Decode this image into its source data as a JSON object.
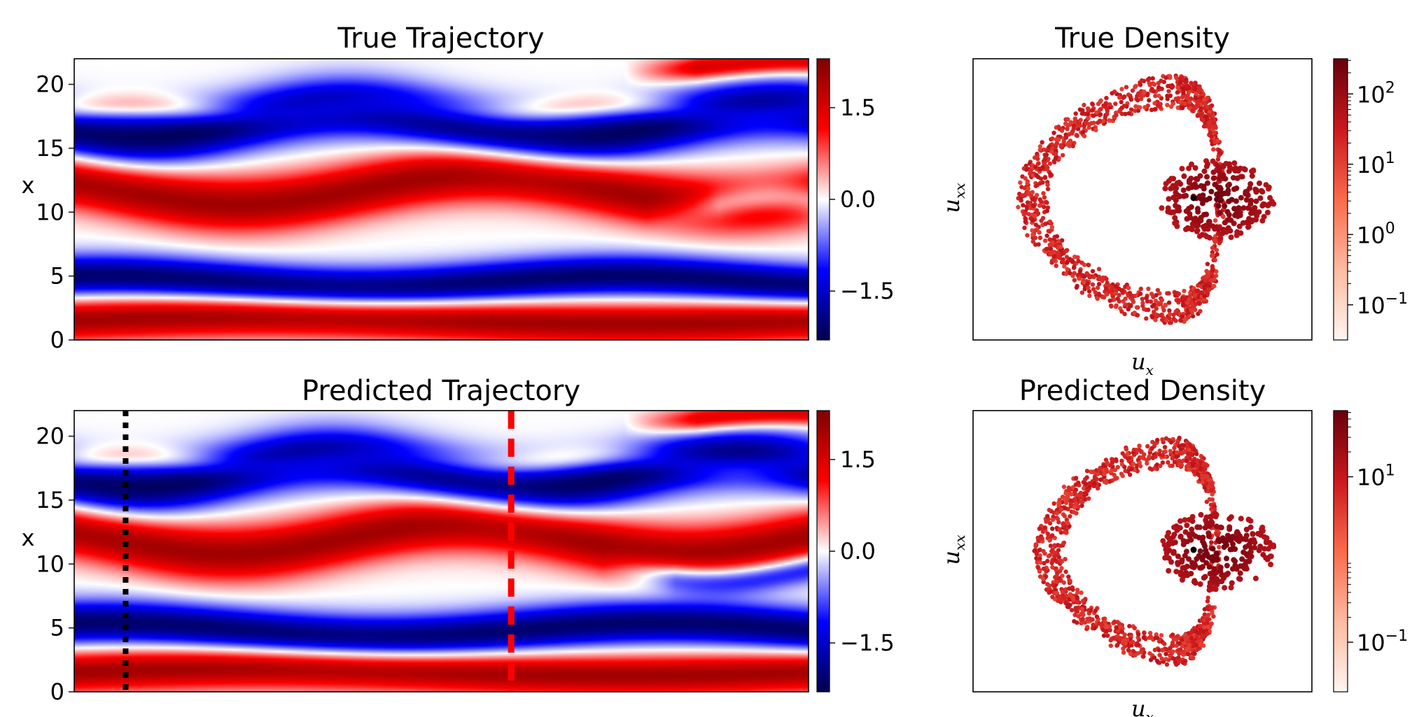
{
  "chart_data": [
    {
      "panel": "true-trajectory",
      "type": "heatmap",
      "title": "True Trajectory",
      "ylabel": "x",
      "xlabel": "",
      "ylim": [
        0,
        22
      ],
      "yticks": [
        "0",
        "5",
        "10",
        "15",
        "20"
      ],
      "colormap": "seismic",
      "colorbar": {
        "range": [
          -2.3,
          2.3
        ],
        "ticks": [
          "−1.5",
          "0.0",
          "1.5"
        ]
      },
      "bands": [
        {
          "y": 1.5,
          "v": 2.0,
          "w": 1.6,
          "amp": 0.3,
          "freq": 1.0
        },
        {
          "y": 4.5,
          "v": -2.1,
          "w": 1.6,
          "amp": 0.5,
          "freq": 1.4
        },
        {
          "y": 11.8,
          "v": 2.0,
          "w": 2.2,
          "amp": 1.2,
          "freq": 1.5
        },
        {
          "y": 17.0,
          "v": -2.2,
          "w": 2.2,
          "amp": 1.2,
          "freq": 1.7
        },
        {
          "y": 10.5,
          "v": -1.5,
          "w": 1.2,
          "amp": 0.6,
          "freq": 2.5,
          "tmin": 0.78
        },
        {
          "y": 18.0,
          "v": 0.8,
          "w": 1.0,
          "amp": 0.3,
          "freq": 3.0
        },
        {
          "y": 21.5,
          "v": 1.6,
          "w": 1.0,
          "amp": 0.4,
          "freq": 2.0,
          "tmin": 0.75
        }
      ]
    },
    {
      "panel": "predicted-trajectory",
      "type": "heatmap",
      "title": "Predicted Trajectory",
      "ylabel": "x",
      "xlabel": "",
      "ylim": [
        0,
        22
      ],
      "yticks": [
        "0",
        "5",
        "10",
        "15",
        "20"
      ],
      "colormap": "seismic",
      "colorbar": {
        "range": [
          -2.3,
          2.3
        ],
        "ticks": [
          "−1.5",
          "0.0",
          "1.5"
        ]
      },
      "bands": [
        {
          "y": 1.5,
          "v": 2.0,
          "w": 1.6,
          "amp": 0.3,
          "freq": 1.0
        },
        {
          "y": 4.8,
          "v": -2.1,
          "w": 1.7,
          "amp": 0.6,
          "freq": 1.3
        },
        {
          "y": 12.0,
          "v": 2.0,
          "w": 2.2,
          "amp": 1.2,
          "freq": 1.6
        },
        {
          "y": 17.2,
          "v": -2.2,
          "w": 2.2,
          "amp": 1.2,
          "freq": 1.8
        },
        {
          "y": 9.5,
          "v": -1.5,
          "w": 1.2,
          "amp": 0.8,
          "freq": 2.2,
          "tmin": 0.72
        },
        {
          "y": 18.0,
          "v": 0.8,
          "w": 1.0,
          "amp": 0.3,
          "freq": 3.0
        },
        {
          "y": 21.5,
          "v": 1.6,
          "w": 1.0,
          "amp": 0.4,
          "freq": 2.0,
          "tmin": 0.75
        }
      ],
      "markers": [
        {
          "name": "black-dotted-line",
          "t": 0.07,
          "color": "#000000",
          "style": "dotted"
        },
        {
          "name": "red-dashed-line",
          "t": 0.595,
          "color": "#ff0000",
          "style": "dashed"
        }
      ]
    },
    {
      "panel": "true-density",
      "type": "scatter",
      "title": "True Density",
      "xlabel_base": "u",
      "xlabel_sub": "x",
      "ylabel_base": "u",
      "ylabel_sub": "xx",
      "colormap": "Reds",
      "colorbar": {
        "scale": "log",
        "range": [
          -1.5,
          2.5
        ],
        "ticks": [
          {
            "base": "10",
            "exp": "2",
            "logv": 2
          },
          {
            "base": "10",
            "exp": "1",
            "logv": 1
          },
          {
            "base": "10",
            "exp": "0",
            "logv": 0
          },
          {
            "base": "10",
            "exp": "−1",
            "logv": -1
          }
        ]
      },
      "center": [
        0.65,
        0.5
      ],
      "attractor": {
        "rx": [
          0.38,
          0.47
        ],
        "ry": [
          0.36,
          0.49
        ],
        "hole_rx": 0.22,
        "hole_ry": 0.26
      }
    },
    {
      "panel": "predicted-density",
      "type": "scatter",
      "title": "Predicted Density",
      "xlabel_base": "u",
      "xlabel_sub": "x",
      "ylabel_base": "u",
      "ylabel_sub": "xx",
      "colormap": "Reds",
      "colorbar": {
        "scale": "log",
        "range": [
          -1.6,
          1.8
        ],
        "ticks": [
          {
            "base": "10",
            "exp": "1",
            "logv": 1
          },
          {
            "base": "10",
            "exp": "−1",
            "logv": -1
          }
        ]
      },
      "center": [
        0.65,
        0.5
      ],
      "attractor": {
        "rx": [
          0.33,
          0.42
        ],
        "ry": [
          0.33,
          0.45
        ],
        "hole_rx": 0.2,
        "hole_ry": 0.24
      }
    }
  ]
}
